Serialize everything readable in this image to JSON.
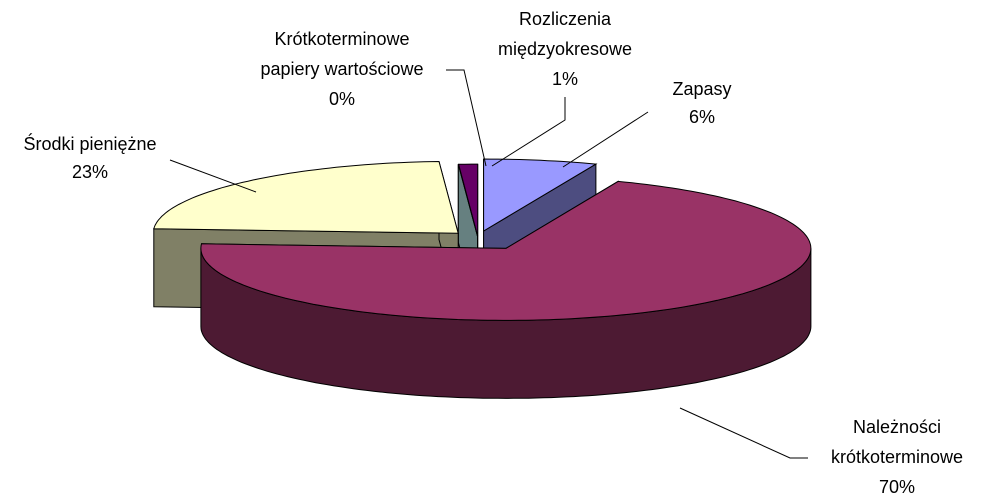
{
  "chart_data": {
    "type": "pie3d",
    "categories": [
      "Zapasy",
      "Należności krótkoterminowe",
      "Środki pieniężne",
      "Krótkoterminowe papiery wartościowe",
      "Rozliczenia międzyokresowe"
    ],
    "values": [
      6,
      70,
      23,
      0,
      1
    ],
    "value_labels": [
      "6%",
      "70%",
      "23%",
      "0%",
      "1%"
    ],
    "colors": [
      "#9999ff",
      "#993366",
      "#ffffcc",
      "#ccffff",
      "#660066"
    ]
  }
}
